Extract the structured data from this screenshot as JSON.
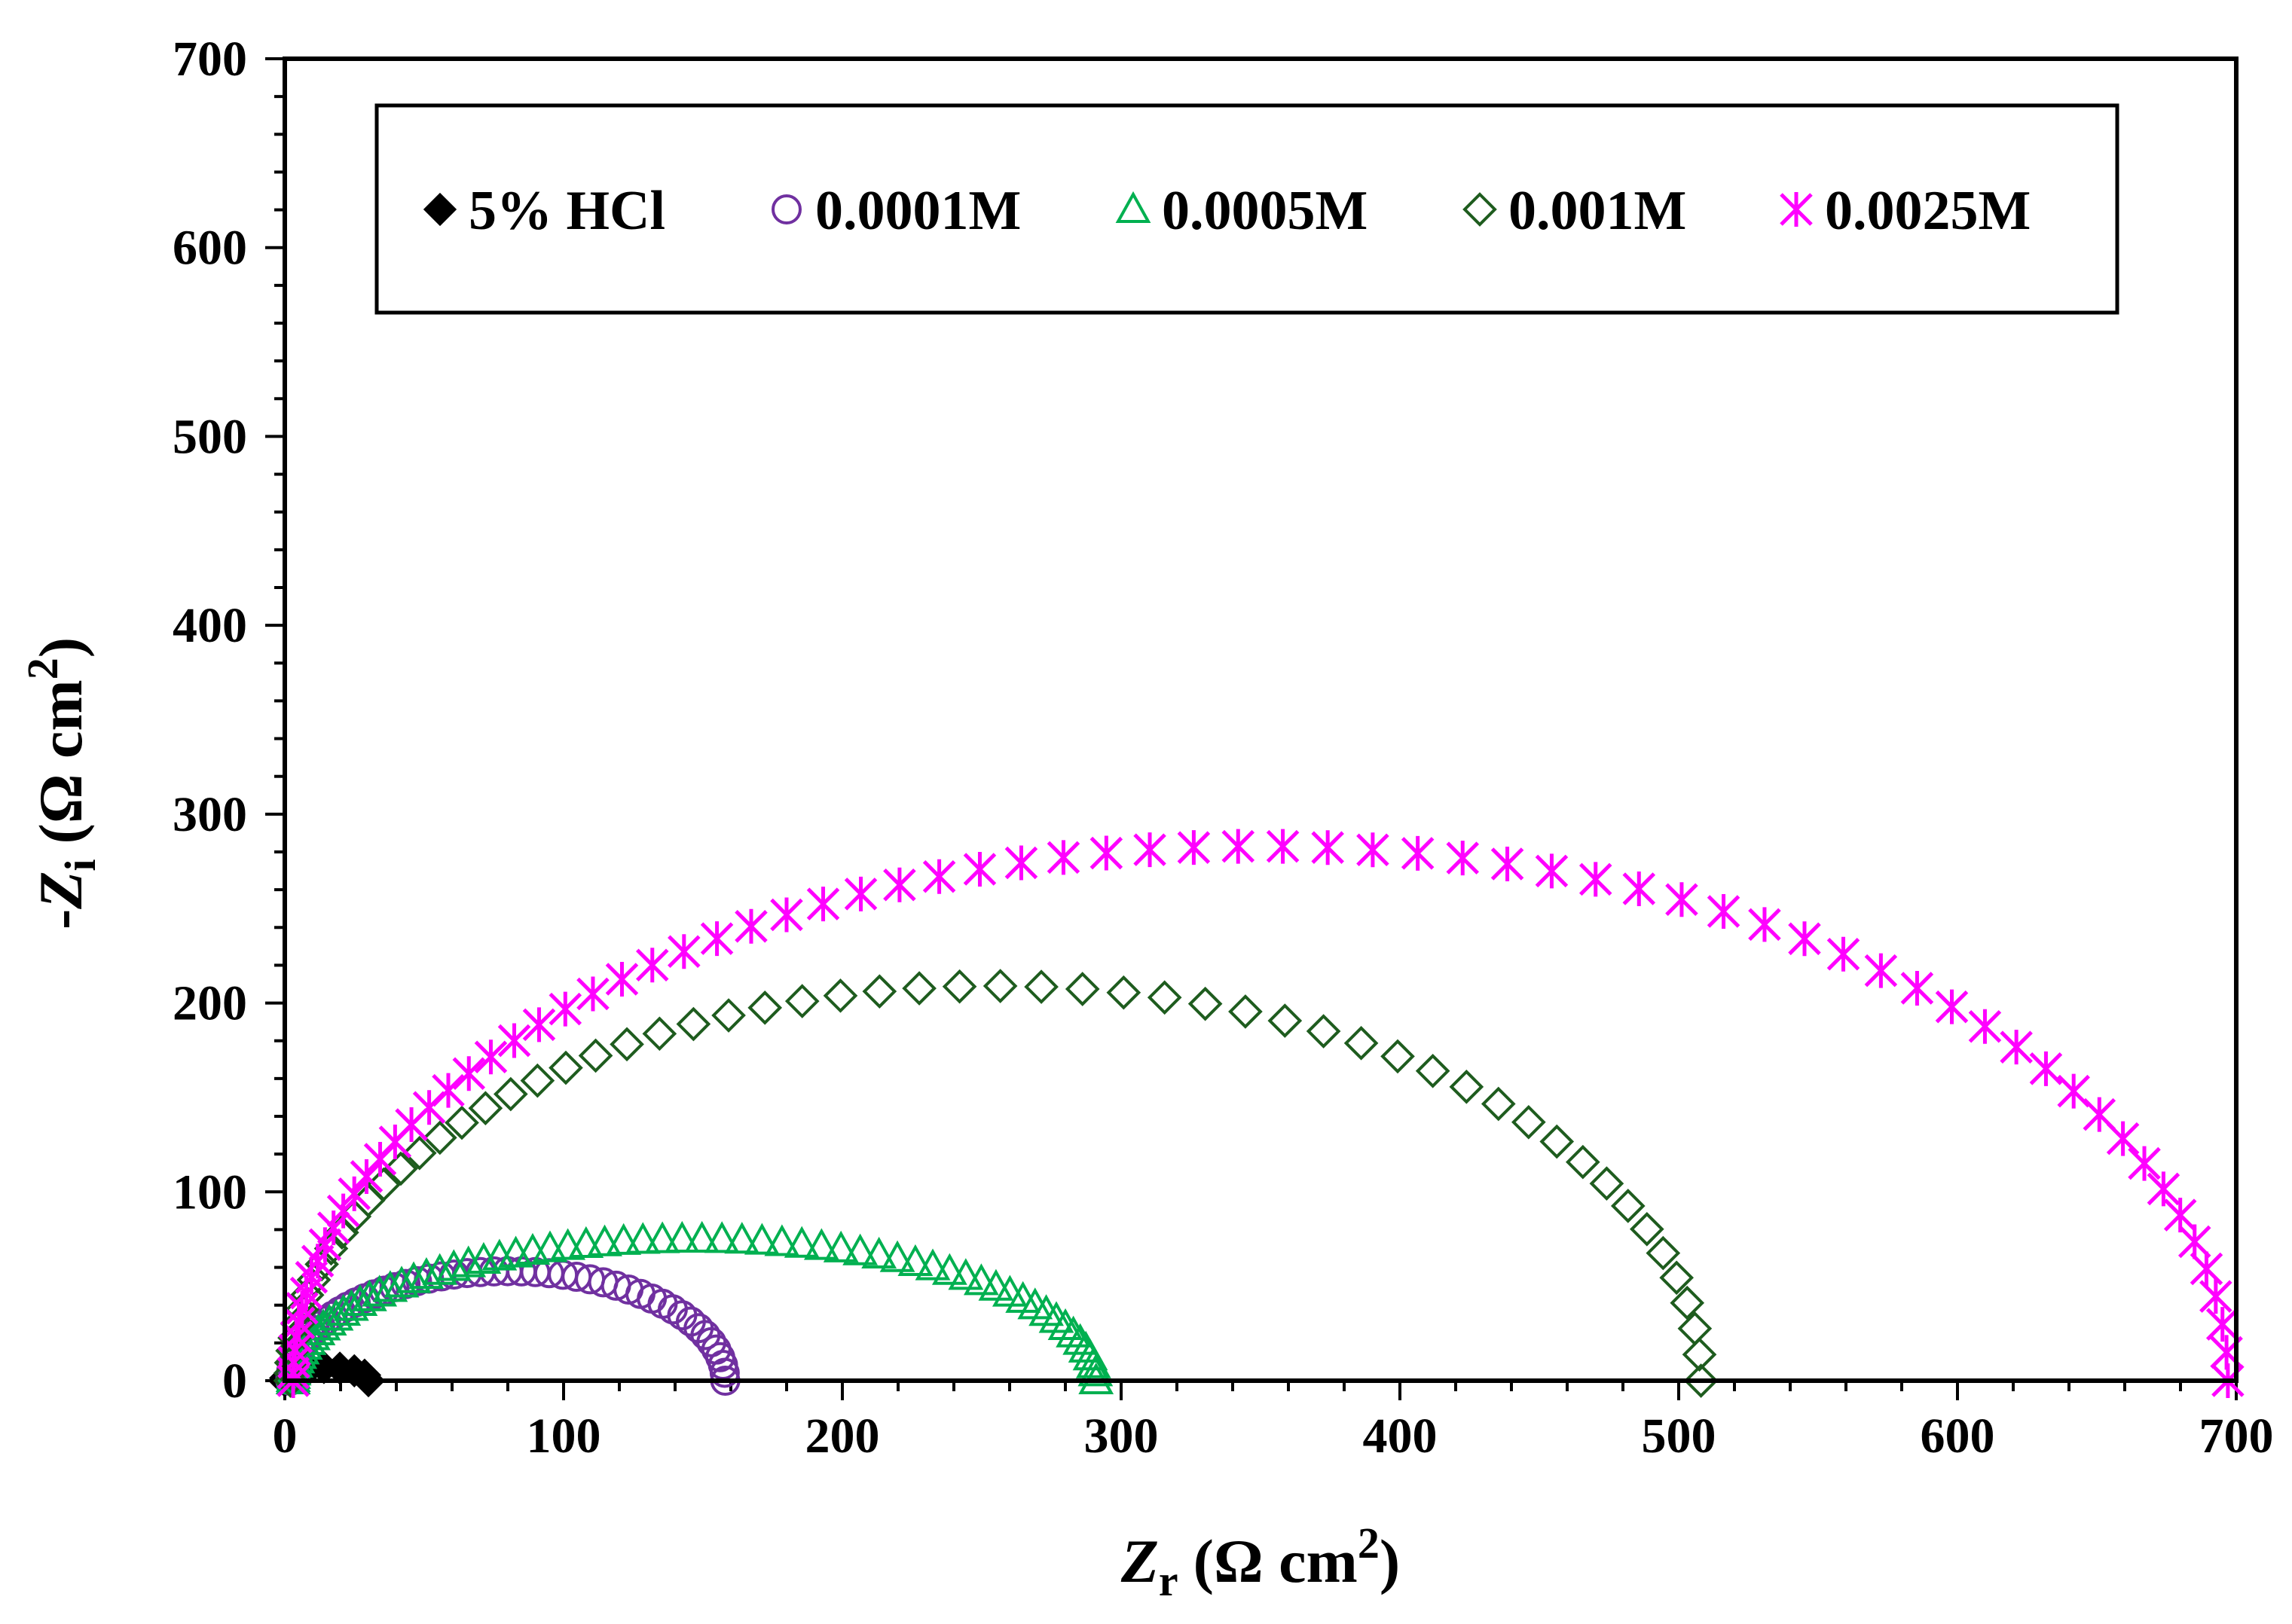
{
  "chart_data": {
    "type": "scatter",
    "title": "",
    "xlabel": {
      "var": "Z",
      "sub": "r",
      "pre": "(Ω cm",
      "sup": "2",
      "post": ")"
    },
    "ylabel": {
      "prefix": "-",
      "var": "Z",
      "sub": "i",
      "pre": "(Ω cm",
      "sup": "2",
      "post": ")"
    },
    "xlim": [
      0,
      700
    ],
    "ylim": [
      0,
      700
    ],
    "x_major_step": 100,
    "y_major_step": 100,
    "x_minor_step": 20,
    "y_minor_step": 20,
    "grid": false,
    "legend_position": "top",
    "x_ticks": [
      "0",
      "100",
      "200",
      "300",
      "400",
      "500",
      "600",
      "700"
    ],
    "y_ticks": [
      "0",
      "100",
      "200",
      "300",
      "400",
      "500",
      "600",
      "700"
    ],
    "series": [
      {
        "name": "5% HCl",
        "marker": "diamond-filled",
        "color": "#000000",
        "rs": 0,
        "r": 15,
        "vmax": 7,
        "n": 10
      },
      {
        "name": "0.0001M",
        "marker": "circle-open",
        "color": "#7030a0",
        "rs": 2,
        "r": 78,
        "vmax": 58,
        "n": 55
      },
      {
        "name": "0.0005M",
        "marker": "triangle-open",
        "color": "#00b050",
        "rs": 3,
        "r": 144,
        "vmax": 75,
        "n": 70
      },
      {
        "name": "0.001M",
        "marker": "diamond-open",
        "color": "#1e5c1e",
        "rs": 2,
        "r": 253,
        "vmax": 209,
        "n": 60
      },
      {
        "name": "0.0025M",
        "marker": "asterisk",
        "color": "#ff00ff",
        "rs": 3,
        "r": 347,
        "vmax": 283,
        "n": 75
      }
    ]
  }
}
